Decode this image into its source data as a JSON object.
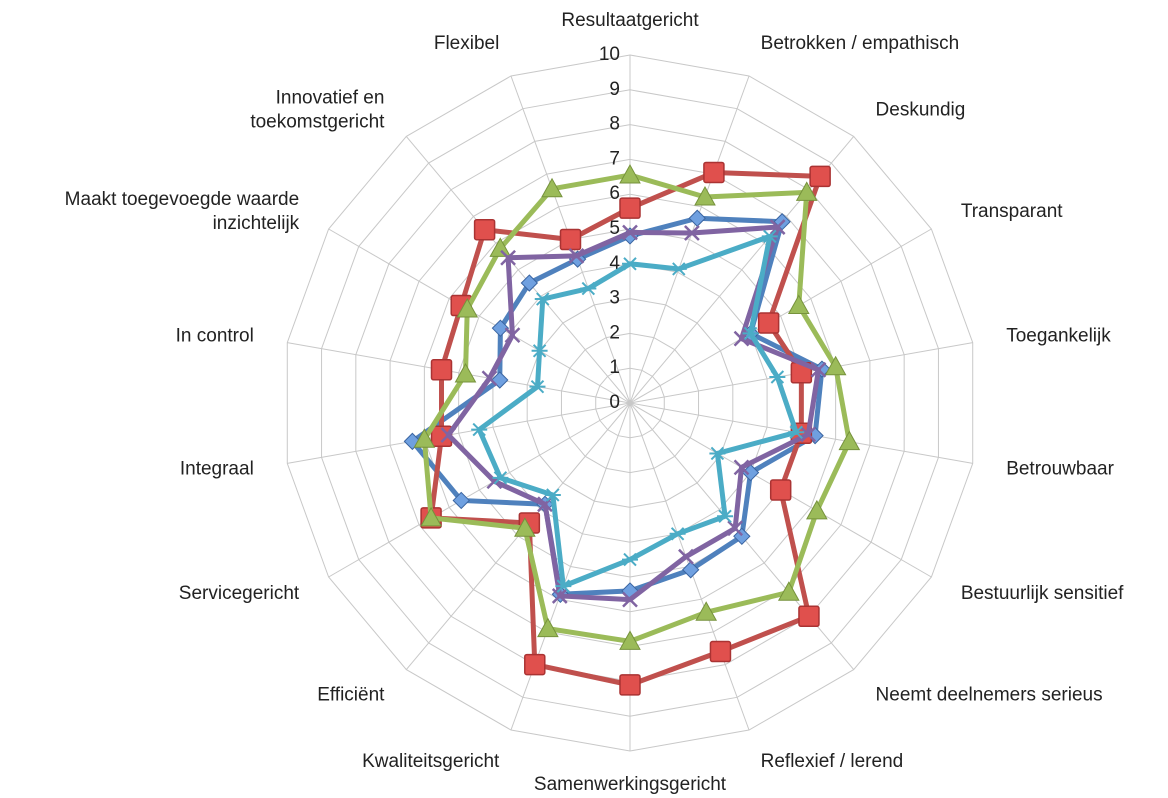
{
  "chart_data": {
    "type": "radar",
    "categories": [
      "Resultaatgericht",
      "Betrokken / empathisch",
      "Deskundig",
      "Transparant",
      "Toegankelijk",
      "Betrouwbaar",
      "Bestuurlijk sensitief",
      "Neemt deelnemers serieus",
      "Reflexief / lerend",
      "Samenwerkingsgericht",
      "Kwaliteitsgericht",
      "Efficiënt",
      "Servicegericht",
      "Integraal",
      "In control",
      "Maakt toegevoegde waarde\ninzichtelijk",
      "Innovatief en\ntoekomstgericht",
      "Flexibel"
    ],
    "rlim": [
      0,
      10
    ],
    "rticks": [
      0,
      1,
      2,
      3,
      4,
      5,
      6,
      7,
      8,
      9,
      10
    ],
    "grid": true,
    "series": [
      {
        "color": "#4f81bd",
        "marker": "diamond",
        "values": [
          4.8,
          5.65,
          6.8,
          4.0,
          5.6,
          5.4,
          4.0,
          5.0,
          5.1,
          5.4,
          5.85,
          3.8,
          5.6,
          6.35,
          3.8,
          4.3,
          4.5,
          4.4
        ]
      },
      {
        "color": "#c0504d",
        "marker": "square",
        "values": [
          5.6,
          7.05,
          8.5,
          4.6,
          5.0,
          5.0,
          5.0,
          8.0,
          7.6,
          8.1,
          8.0,
          4.5,
          6.6,
          5.5,
          5.5,
          5.6,
          6.5,
          5.0
        ]
      },
      {
        "color": "#9bbb59",
        "marker": "triangle",
        "values": [
          6.55,
          6.3,
          7.9,
          5.6,
          6.0,
          6.4,
          6.2,
          7.1,
          6.4,
          6.85,
          6.9,
          4.7,
          6.6,
          6.0,
          4.8,
          5.4,
          5.8,
          6.55
        ]
      },
      {
        "color": "#8064a2",
        "marker": "x",
        "values": [
          4.9,
          5.2,
          6.6,
          3.7,
          5.5,
          5.2,
          3.7,
          4.7,
          4.7,
          5.65,
          5.9,
          3.8,
          4.5,
          5.3,
          4.1,
          3.9,
          5.45,
          4.5
        ]
      },
      {
        "color": "#4bacc6",
        "marker": "star",
        "values": [
          4.0,
          4.1,
          6.25,
          4.0,
          4.3,
          4.85,
          2.9,
          4.25,
          4.0,
          4.5,
          5.6,
          3.45,
          4.3,
          4.4,
          2.7,
          3.0,
          3.9,
          3.5
        ]
      }
    ]
  }
}
